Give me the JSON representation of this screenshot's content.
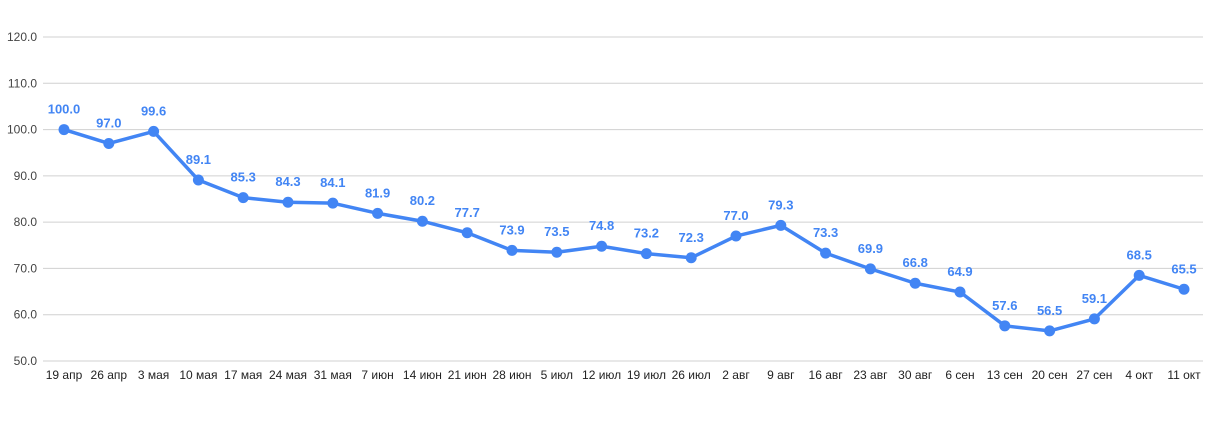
{
  "chart_data": {
    "type": "line",
    "title": "",
    "xlabel": "",
    "ylabel": "",
    "ylim": [
      50,
      120
    ],
    "yticks": [
      "50.0",
      "60.0",
      "70.0",
      "80.0",
      "90.0",
      "100.0",
      "110.0",
      "120.0"
    ],
    "grid": true,
    "legend": "none",
    "categories": [
      "19 апр",
      "26 апр",
      "3 мая",
      "10 мая",
      "17 мая",
      "24 мая",
      "31 мая",
      "7 июн",
      "14 июн",
      "21 июн",
      "28 июн",
      "5 июл",
      "12 июл",
      "19 июл",
      "26 июл",
      "2 авг",
      "9 авг",
      "16 авг",
      "23 авг",
      "30 авг",
      "6 сен",
      "13 сен",
      "20 сен",
      "27 сен",
      "4 окт",
      "11 окт"
    ],
    "series": [
      {
        "color": "#4285f4",
        "values": [
          100.0,
          97.0,
          99.6,
          89.1,
          85.3,
          84.3,
          84.1,
          81.9,
          80.2,
          77.7,
          73.9,
          73.5,
          74.8,
          73.2,
          72.3,
          77.0,
          79.3,
          73.3,
          69.9,
          66.8,
          64.9,
          57.6,
          56.5,
          59.1,
          68.5,
          65.5
        ],
        "labels": [
          "100.0",
          "97.0",
          "99.6",
          "89.1",
          "85.3",
          "84.3",
          "84.1",
          "81.9",
          "80.2",
          "77.7",
          "73.9",
          "73.5",
          "74.8",
          "73.2",
          "72.3",
          "77.0",
          "79.3",
          "73.3",
          "69.9",
          "66.8",
          "64.9",
          "57.6",
          "56.5",
          "59.1",
          "68.5",
          "65.5"
        ]
      }
    ]
  }
}
